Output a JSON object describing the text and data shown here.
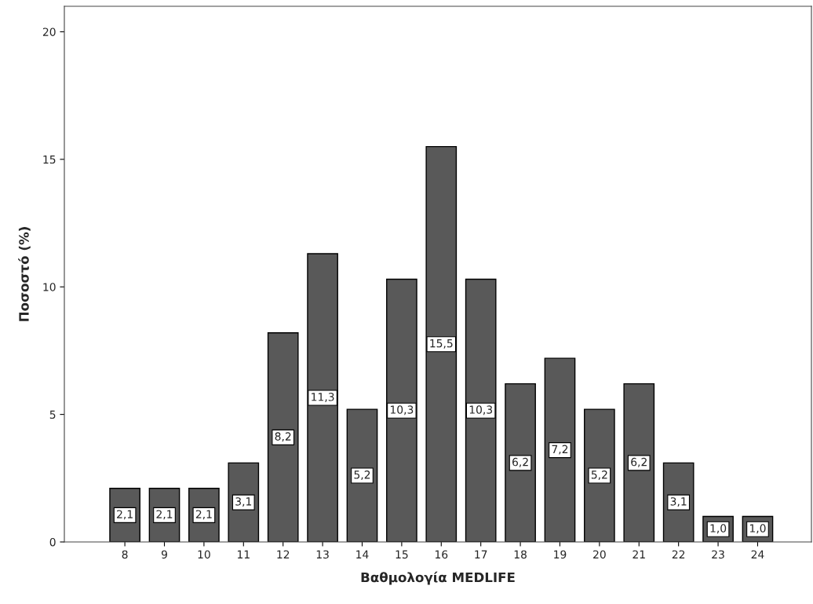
{
  "chart_data": {
    "type": "bar",
    "xlabel": "Βαθμολογία MEDLIFE",
    "ylabel": "Ποσοστό (%)",
    "categories": [
      "8",
      "9",
      "10",
      "11",
      "12",
      "13",
      "14",
      "15",
      "16",
      "17",
      "18",
      "19",
      "20",
      "21",
      "22",
      "23",
      "24"
    ],
    "values": [
      2.1,
      2.1,
      2.1,
      3.1,
      8.2,
      11.3,
      5.2,
      10.3,
      15.5,
      10.3,
      6.2,
      7.2,
      5.2,
      6.2,
      3.1,
      1.0,
      1.0
    ],
    "value_labels": [
      "2,1",
      "2,1",
      "2,1",
      "3,1",
      "8,2",
      "11,3",
      "5,2",
      "10,3",
      "15,5",
      "10,3",
      "6,2",
      "7,2",
      "5,2",
      "6,2",
      "3,1",
      "1,0",
      "1,0"
    ],
    "color": "#595959",
    "ylim": [
      0,
      21
    ],
    "yticks": [
      0,
      5,
      10,
      15,
      20
    ],
    "grid": false,
    "legend": false
  }
}
